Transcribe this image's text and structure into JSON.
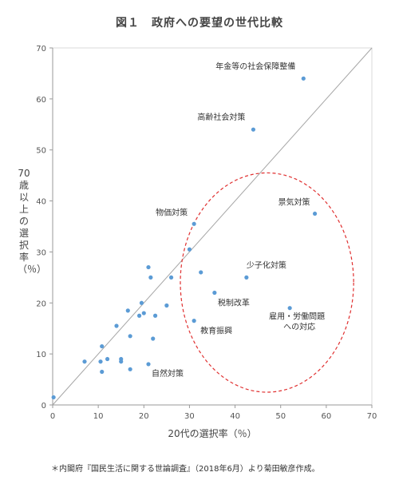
{
  "chart_data": {
    "type": "scatter",
    "title": "図１　政府への要望の世代比較",
    "xlabel": "20代の選択率（％）",
    "ylabel": "70歳以上の選択率（％）",
    "xlim": [
      0,
      70
    ],
    "ylim": [
      0,
      70
    ],
    "xticks": [
      0,
      10,
      20,
      30,
      40,
      50,
      60,
      70
    ],
    "yticks": [
      0,
      10,
      20,
      30,
      40,
      50,
      60,
      70
    ],
    "reference_line": "y = x",
    "marker_color": "#5b9bd5",
    "grid": false,
    "points": [
      {
        "x": 55.0,
        "y": 64.0,
        "label": "年金等の社会保障整備"
      },
      {
        "x": 44.0,
        "y": 54.0,
        "label": "高齢社会対策"
      },
      {
        "x": 57.5,
        "y": 37.5,
        "label": "景気対策"
      },
      {
        "x": 31.0,
        "y": 35.5,
        "label": "物価対策"
      },
      {
        "x": 42.5,
        "y": 25.0,
        "label": "少子化対策"
      },
      {
        "x": 35.5,
        "y": 22.0,
        "label": "税制改革"
      },
      {
        "x": 52.0,
        "y": 19.0,
        "label": "雇用・労働問題\nへの対応"
      },
      {
        "x": 31.0,
        "y": 16.5,
        "label": "教育振興"
      },
      {
        "x": 21.0,
        "y": 8.0,
        "label": "自然対策"
      },
      {
        "x": 0.2,
        "y": 1.5,
        "label": ""
      },
      {
        "x": 7.0,
        "y": 8.5,
        "label": ""
      },
      {
        "x": 10.5,
        "y": 8.5,
        "label": ""
      },
      {
        "x": 10.8,
        "y": 6.5,
        "label": ""
      },
      {
        "x": 10.8,
        "y": 11.5,
        "label": ""
      },
      {
        "x": 12.0,
        "y": 9.0,
        "label": ""
      },
      {
        "x": 14.0,
        "y": 15.5,
        "label": ""
      },
      {
        "x": 15.0,
        "y": 9.0,
        "label": ""
      },
      {
        "x": 15.0,
        "y": 8.5,
        "label": ""
      },
      {
        "x": 16.5,
        "y": 18.5,
        "label": ""
      },
      {
        "x": 17.0,
        "y": 13.5,
        "label": ""
      },
      {
        "x": 17.0,
        "y": 7.0,
        "label": ""
      },
      {
        "x": 19.0,
        "y": 17.5,
        "label": ""
      },
      {
        "x": 19.5,
        "y": 20.0,
        "label": ""
      },
      {
        "x": 20.0,
        "y": 18.0,
        "label": ""
      },
      {
        "x": 21.0,
        "y": 27.0,
        "label": ""
      },
      {
        "x": 21.5,
        "y": 25.0,
        "label": ""
      },
      {
        "x": 22.0,
        "y": 13.0,
        "label": ""
      },
      {
        "x": 22.5,
        "y": 17.5,
        "label": ""
      },
      {
        "x": 25.0,
        "y": 19.5,
        "label": ""
      },
      {
        "x": 26.0,
        "y": 25.0,
        "label": ""
      },
      {
        "x": 30.0,
        "y": 30.5,
        "label": ""
      },
      {
        "x": 32.5,
        "y": 26.0,
        "label": ""
      }
    ],
    "highlight_ellipse": {
      "cx": 47.0,
      "cy": 24.0,
      "rx": 19.0,
      "ry": 21.5,
      "color": "#e03030",
      "style": "dashed"
    }
  },
  "footnote": "＊内閣府『国民生活に関する世論調査』（2018年6月）より菊田敏彦作成。"
}
